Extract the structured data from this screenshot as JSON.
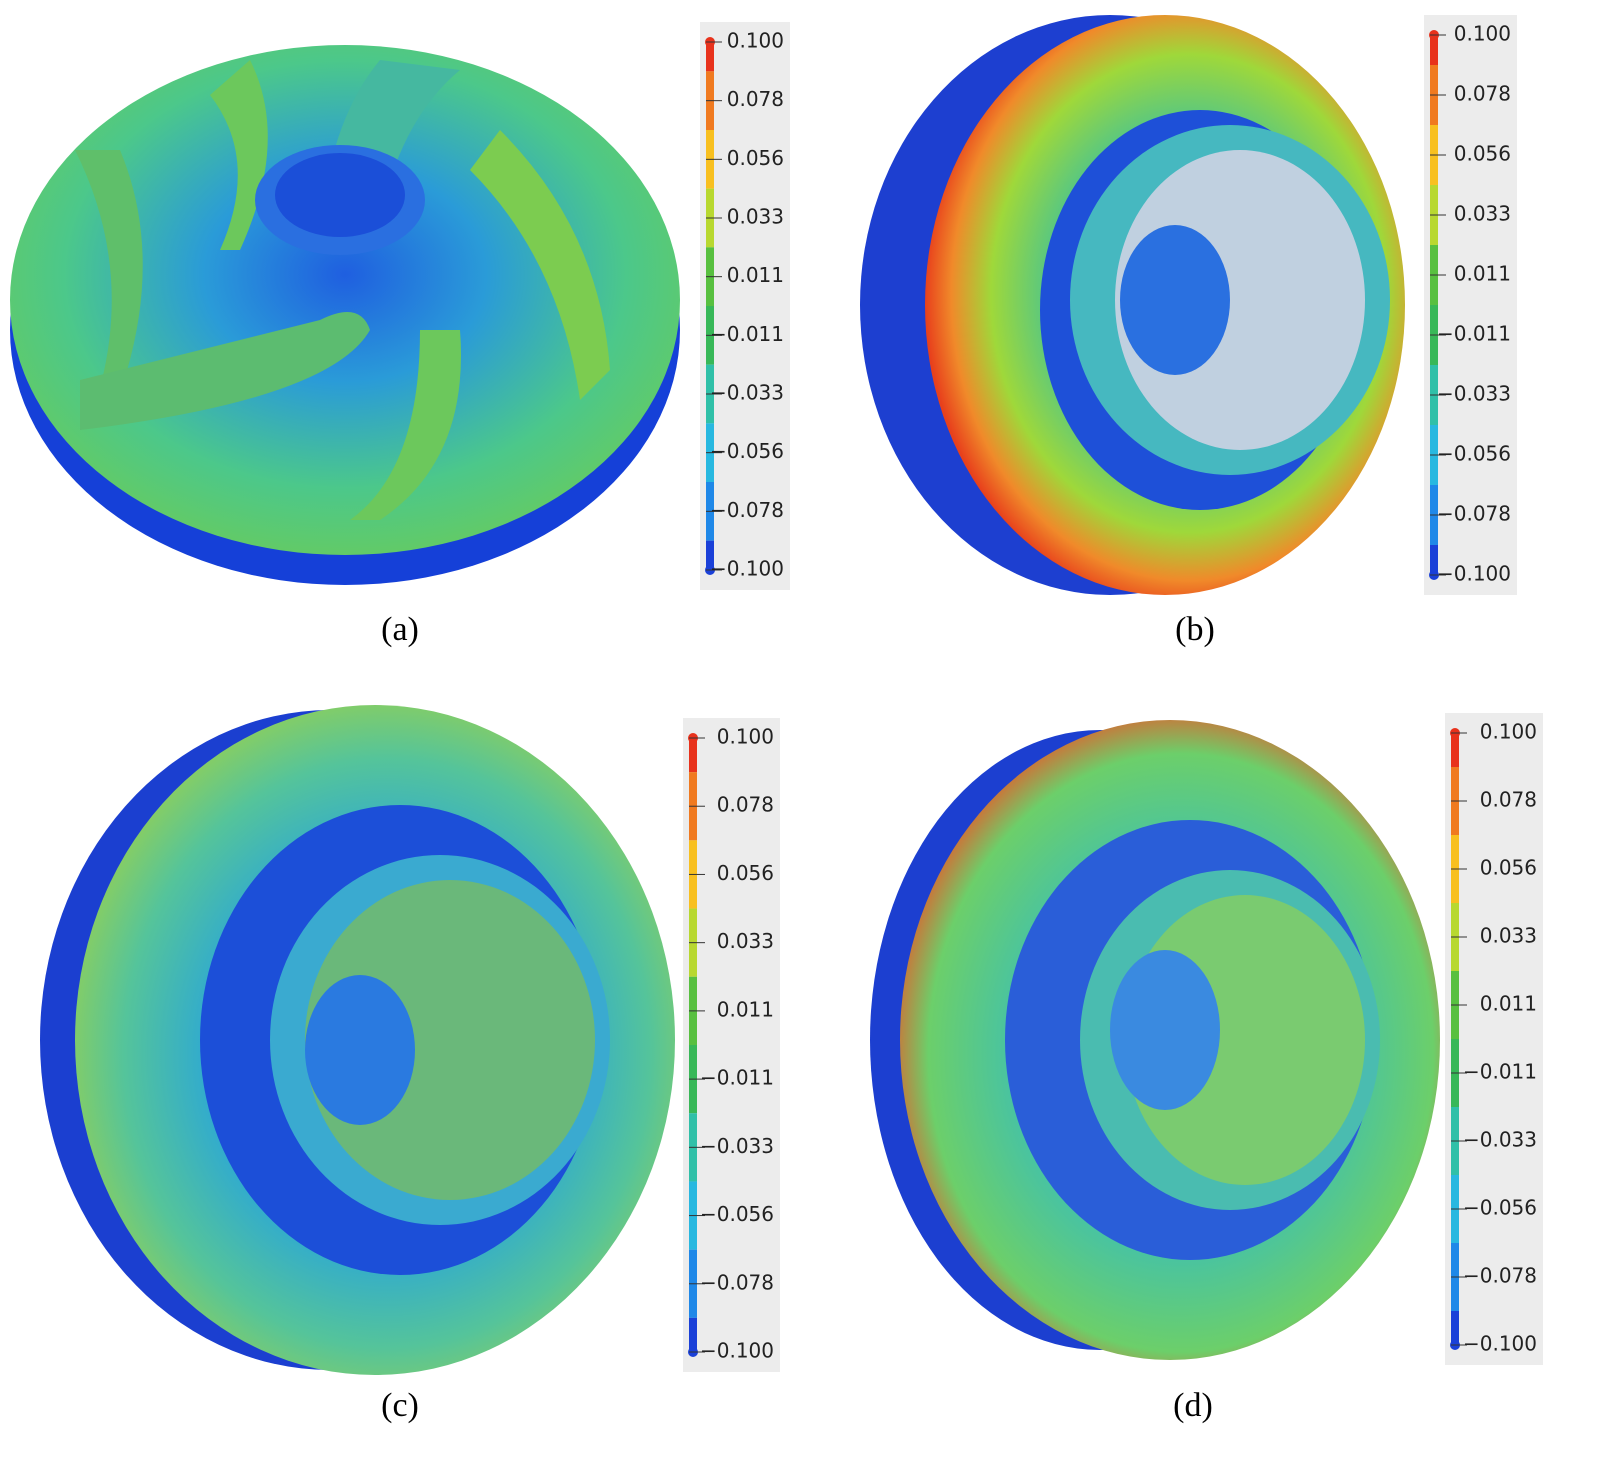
{
  "colorbar_ticks": [
    "0.100",
    "0.078",
    "0.056",
    "0.033",
    "0.011",
    "−0.011",
    "−0.033",
    "−0.056",
    "−0.078",
    "−0.100"
  ],
  "panels": [
    {
      "label": "(a)"
    },
    {
      "label": "(b)"
    },
    {
      "label": "(c)"
    },
    {
      "label": "(d)"
    }
  ]
}
